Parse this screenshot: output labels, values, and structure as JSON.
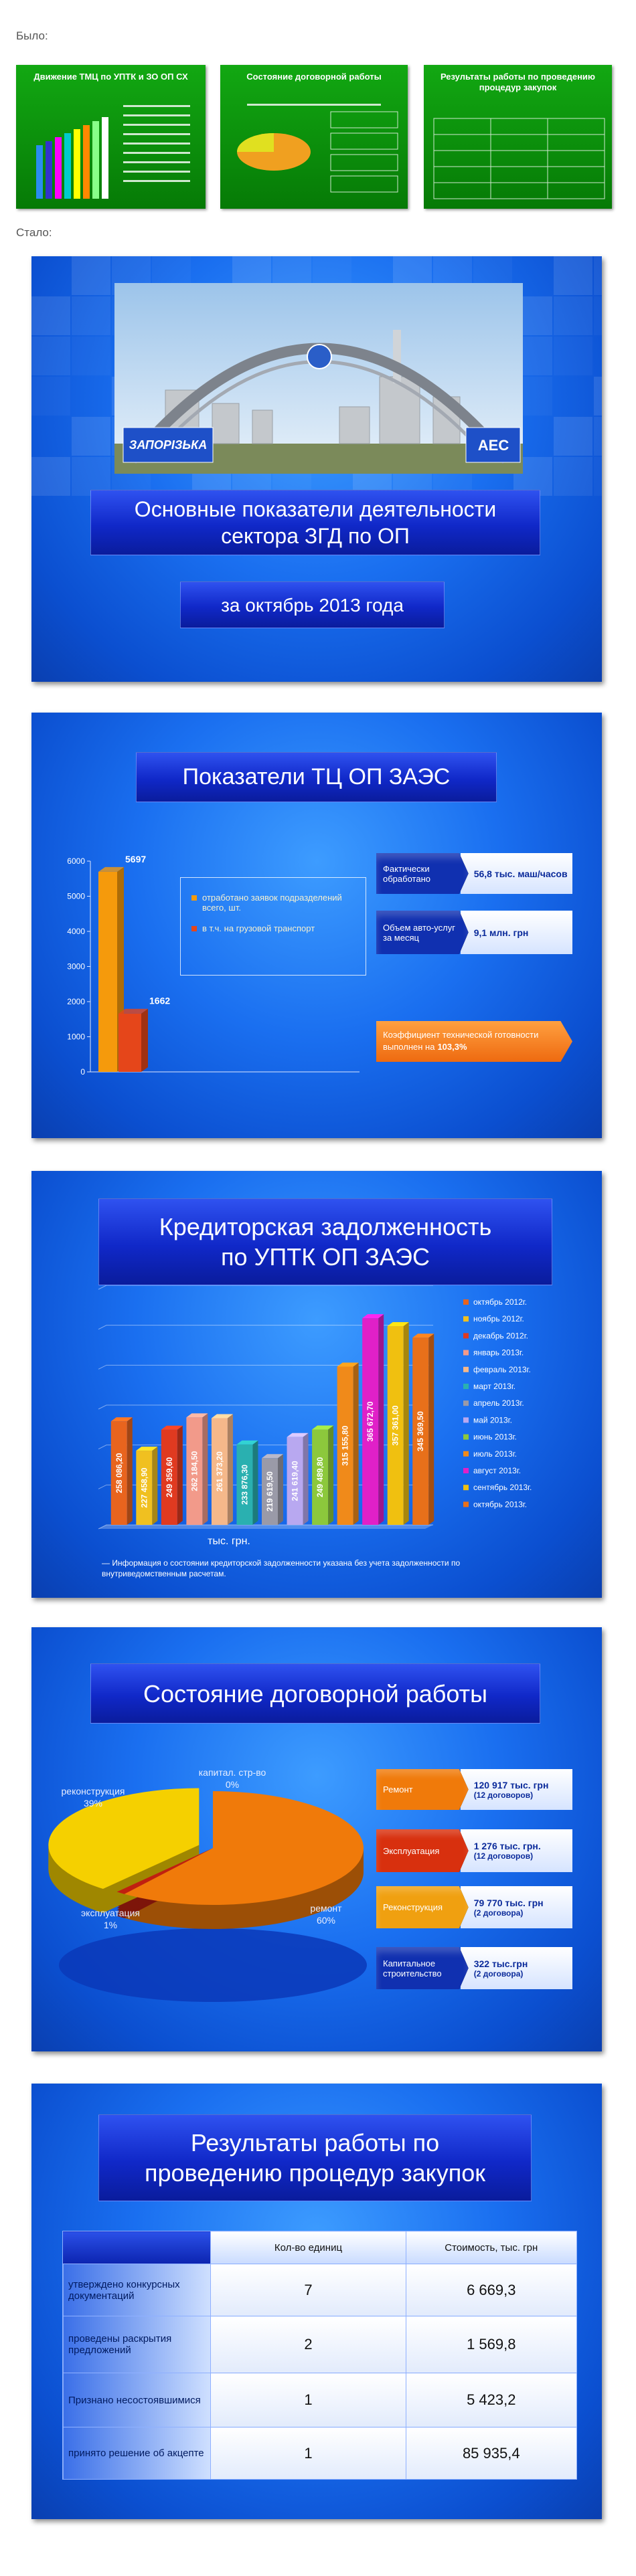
{
  "page": {
    "before_label": "Было:",
    "after_label": "Стало:"
  },
  "before_slides": [
    {
      "title": "Движение ТМЦ по УПТК и ЗО ОП СХ"
    },
    {
      "title": "Состояние договорной работы"
    },
    {
      "title": "Результаты работы по проведению процедур закупок"
    }
  ],
  "title_slide": {
    "sign_left": "ЗАПОРІЗЬКА",
    "sign_right": "АЕС",
    "title": "Основные показатели деятельности сектора ЗГД по ОП",
    "subtitle": "за октябрь 2013 года"
  },
  "chart_data": [
    {
      "type": "bar",
      "title": "Показатели ТЦ ОП ЗАЭС",
      "categories": [
        null
      ],
      "series": [
        {
          "name": "отработано заявок подразделений всего, шт.",
          "color": "#f59a0c",
          "values": [
            5697
          ]
        },
        {
          "name": "в т.ч. на грузовой транспорт",
          "color": "#e5461a",
          "values": [
            1662
          ]
        }
      ],
      "ylim": [
        0,
        6000
      ],
      "yticks": [
        0,
        1000,
        2000,
        3000,
        4000,
        5000,
        6000
      ],
      "info": [
        {
          "label": "Фактически обработано",
          "value": "56,8 тыс. маш/часов"
        },
        {
          "label": "Объем авто-услуг за месяц",
          "value": "9,1 млн. грн"
        }
      ],
      "note": "Коэффициент технической готовности выполнен на",
      "note_value": "103,3%"
    },
    {
      "type": "bar",
      "title": "Кредиторская задолженность по УПТК ОП ЗАЭС",
      "categories": [
        "октябрь 2012г.",
        "ноябрь 2012г.",
        "декабрь 2012г.",
        "январь 2013г.",
        "февраль 2013г.",
        "март 2013г.",
        "апрель 2013г.",
        "май 2013г.",
        "июнь 2013г.",
        "июль 2013г.",
        "август 2013г.",
        "сентябрь 2013г.",
        "октябрь 2013г."
      ],
      "values": [
        258086.2,
        227458.9,
        249359.6,
        262184.5,
        261373.2,
        233876.3,
        219619.5,
        241619.4,
        249489.8,
        315155.8,
        365672.7,
        357361.0,
        345369.5
      ],
      "value_labels": [
        "258 086,20",
        "227 458,90",
        "249 359,60",
        "262 184,50",
        "261 373,20",
        "233 876,30",
        "219 619,50",
        "241 619,40",
        "249 489,80",
        "315 155,80",
        "365 672,70",
        "357 361,00",
        "345 369,50"
      ],
      "colors": [
        "#e8641e",
        "#f0c020",
        "#e03a20",
        "#f29a8a",
        "#f5b88a",
        "#2ab0b0",
        "#9a9aa8",
        "#b8a8f0",
        "#8cc83c",
        "#f08a1a",
        "#e020c8",
        "#f0c010",
        "#e8701a"
      ],
      "ylim": [
        150000,
        400000
      ],
      "x_label": "тыс. грн.",
      "note": "— Информация о состоянии кредиторской задолженности указана без учета задолженности по внутриведомственным расчетам."
    },
    {
      "type": "pie",
      "title": "Состояние договорной работы",
      "categories": [
        "ремонт",
        "эксплуатация",
        "реконструкция",
        "капитал. стр-во"
      ],
      "values": [
        60,
        1,
        39,
        0
      ],
      "value_labels": [
        "60%",
        "1%",
        "39%",
        "0%"
      ],
      "colors": [
        "#f07a0a",
        "#c02010",
        "#f5d000",
        "#2040c0"
      ],
      "info": [
        {
          "label": "Ремонт",
          "value": "120 917 тыс. грн",
          "detail": "(12 договоров)",
          "color": "#f07a0a"
        },
        {
          "label": "Эксплуатация",
          "value": "1 276 тыс. грн.",
          "detail": "(12 договоров)",
          "color": "#d8300e"
        },
        {
          "label": "Реконструкция",
          "value": "79 770 тыс. грн",
          "detail": "(2 договора)",
          "color": "#f0a010"
        },
        {
          "label": "Капитальное строительство",
          "value": "322 тыс.грн",
          "detail": "(2 договора)",
          "color": "#1030b0"
        }
      ]
    }
  ],
  "table": {
    "title": "Результаты работы по проведению процедур закупок",
    "columns": [
      "Кол-во единиц",
      "Стоимость, тыс. грн"
    ],
    "rows": [
      {
        "label": "утверждено конкурсных документаций",
        "count": "7",
        "cost": "6 669,3"
      },
      {
        "label": "проведены раскрытия предложений",
        "count": "2",
        "cost": "1 569,8"
      },
      {
        "label": "Признано несостоявшимися",
        "count": "1",
        "cost": "5 423,2"
      },
      {
        "label": "принято решение об акцепте",
        "count": "1",
        "cost": "85 935,4"
      }
    ]
  }
}
